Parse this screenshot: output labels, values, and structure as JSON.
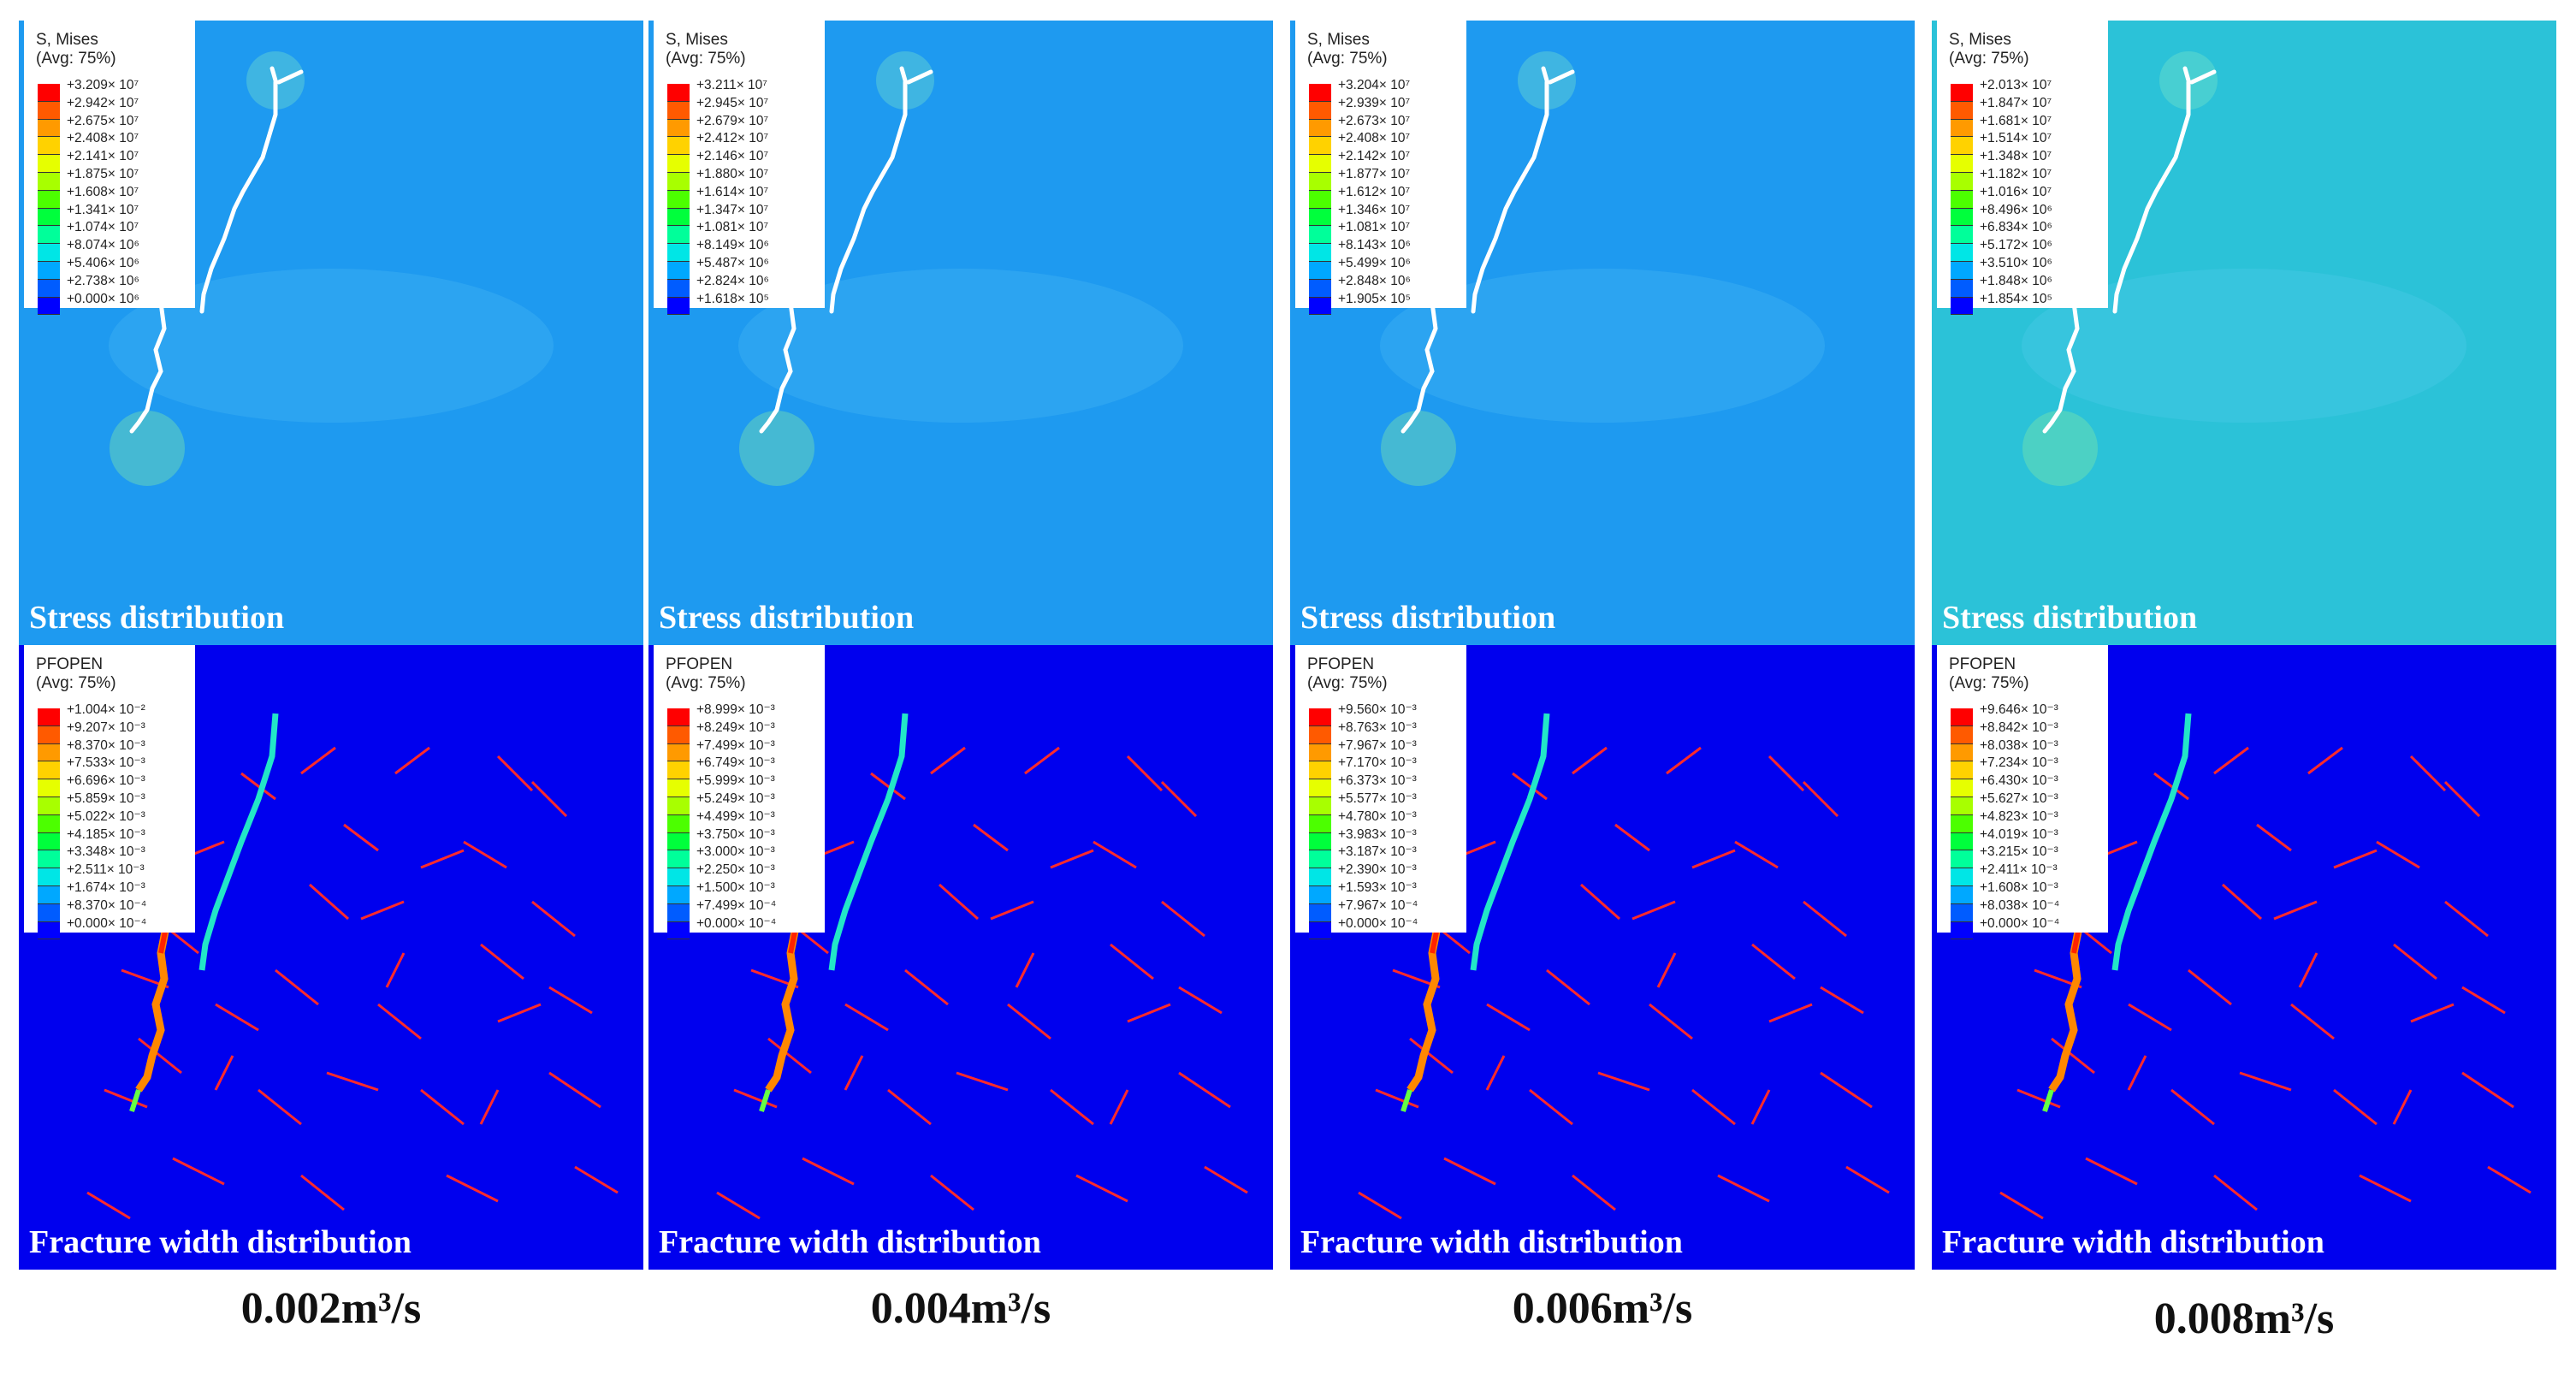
{
  "panel_titles": {
    "stress": "Stress distribution",
    "fracture": "Fracture width distribution"
  },
  "columns": [
    {
      "rate_label": "0.002m³/s",
      "stress_legend": {
        "title": "S, Mises",
        "subtitle": "(Avg: 75%)",
        "values": [
          "+3.209× 10⁷",
          "+2.942× 10⁷",
          "+2.675× 10⁷",
          "+2.408× 10⁷",
          "+2.141× 10⁷",
          "+1.875× 10⁷",
          "+1.608× 10⁷",
          "+1.341× 10⁷",
          "+1.074× 10⁷",
          "+8.074× 10⁶",
          "+5.406× 10⁶",
          "+2.738× 10⁶",
          "+0.000× 10⁶"
        ]
      },
      "fracture_legend": {
        "title": "PFOPEN",
        "subtitle": "(Avg: 75%)",
        "values": [
          "+1.004× 10⁻²",
          "+9.207× 10⁻³",
          "+8.370× 10⁻³",
          "+7.533× 10⁻³",
          "+6.696× 10⁻³",
          "+5.859× 10⁻³",
          "+5.022× 10⁻³",
          "+4.185× 10⁻³",
          "+3.348× 10⁻³",
          "+2.511× 10⁻³",
          "+1.674× 10⁻³",
          "+8.370× 10⁻⁴",
          "+0.000× 10⁻⁴"
        ]
      }
    },
    {
      "rate_label": "0.004m³/s",
      "stress_legend": {
        "title": "S, Mises",
        "subtitle": "(Avg: 75%)",
        "values": [
          "+3.211× 10⁷",
          "+2.945× 10⁷",
          "+2.679× 10⁷",
          "+2.412× 10⁷",
          "+2.146× 10⁷",
          "+1.880× 10⁷",
          "+1.614× 10⁷",
          "+1.347× 10⁷",
          "+1.081× 10⁷",
          "+8.149× 10⁶",
          "+5.487× 10⁶",
          "+2.824× 10⁶",
          "+1.618× 10⁵"
        ]
      },
      "fracture_legend": {
        "title": "PFOPEN",
        "subtitle": "(Avg: 75%)",
        "values": [
          "+8.999× 10⁻³",
          "+8.249× 10⁻³",
          "+7.499× 10⁻³",
          "+6.749× 10⁻³",
          "+5.999× 10⁻³",
          "+5.249× 10⁻³",
          "+4.499× 10⁻³",
          "+3.750× 10⁻³",
          "+3.000× 10⁻³",
          "+2.250× 10⁻³",
          "+1.500× 10⁻³",
          "+7.499× 10⁻⁴",
          "+0.000× 10⁻⁴"
        ]
      }
    },
    {
      "rate_label": "0.006m³/s",
      "stress_legend": {
        "title": "S, Mises",
        "subtitle": "(Avg: 75%)",
        "values": [
          "+3.204× 10⁷",
          "+2.939× 10⁷",
          "+2.673× 10⁷",
          "+2.408× 10⁷",
          "+2.142× 10⁷",
          "+1.877× 10⁷",
          "+1.612× 10⁷",
          "+1.346× 10⁷",
          "+1.081× 10⁷",
          "+8.143× 10⁶",
          "+5.499× 10⁶",
          "+2.848× 10⁶",
          "+1.905× 10⁵"
        ]
      },
      "fracture_legend": {
        "title": "PFOPEN",
        "subtitle": "(Avg: 75%)",
        "values": [
          "+9.560× 10⁻³",
          "+8.763× 10⁻³",
          "+7.967× 10⁻³",
          "+7.170× 10⁻³",
          "+6.373× 10⁻³",
          "+5.577× 10⁻³",
          "+4.780× 10⁻³",
          "+3.983× 10⁻³",
          "+3.187× 10⁻³",
          "+2.390× 10⁻³",
          "+1.593× 10⁻³",
          "+7.967× 10⁻⁴",
          "+0.000× 10⁻⁴"
        ]
      }
    },
    {
      "rate_label": "0.008m³/s",
      "stress_legend": {
        "title": "S, Mises",
        "subtitle": "(Avg: 75%)",
        "values": [
          "+2.013× 10⁷",
          "+1.847× 10⁷",
          "+1.681× 10⁷",
          "+1.514× 10⁷",
          "+1.348× 10⁷",
          "+1.182× 10⁷",
          "+1.016× 10⁷",
          "+8.496× 10⁶",
          "+6.834× 10⁶",
          "+5.172× 10⁶",
          "+3.510× 10⁶",
          "+1.848× 10⁶",
          "+1.854× 10⁵"
        ]
      },
      "fracture_legend": {
        "title": "PFOPEN",
        "subtitle": "(Avg: 75%)",
        "values": [
          "+9.646× 10⁻³",
          "+8.842× 10⁻³",
          "+8.038× 10⁻³",
          "+7.234× 10⁻³",
          "+6.430× 10⁻³",
          "+5.627× 10⁻³",
          "+4.823× 10⁻³",
          "+4.019× 10⁻³",
          "+3.215× 10⁻³",
          "+2.411× 10⁻³",
          "+1.608× 10⁻³",
          "+8.038× 10⁻⁴",
          "+0.000× 10⁻⁴"
        ]
      }
    }
  ],
  "colors": {
    "colormap": [
      "#ff0000",
      "#ff5a00",
      "#ff9a00",
      "#ffd200",
      "#e6ff00",
      "#a8ff00",
      "#4cff00",
      "#00ff3c",
      "#00ff9a",
      "#00e6e6",
      "#00a8ff",
      "#005cff",
      "#0000ff"
    ],
    "stress_background": "#1e9af0",
    "stress_background_alt": "#2bc2d8",
    "fracture_background": "#0000ee",
    "natural_fracture": "#ff2a2a",
    "hydraulic_fracture": "#ffffff"
  }
}
